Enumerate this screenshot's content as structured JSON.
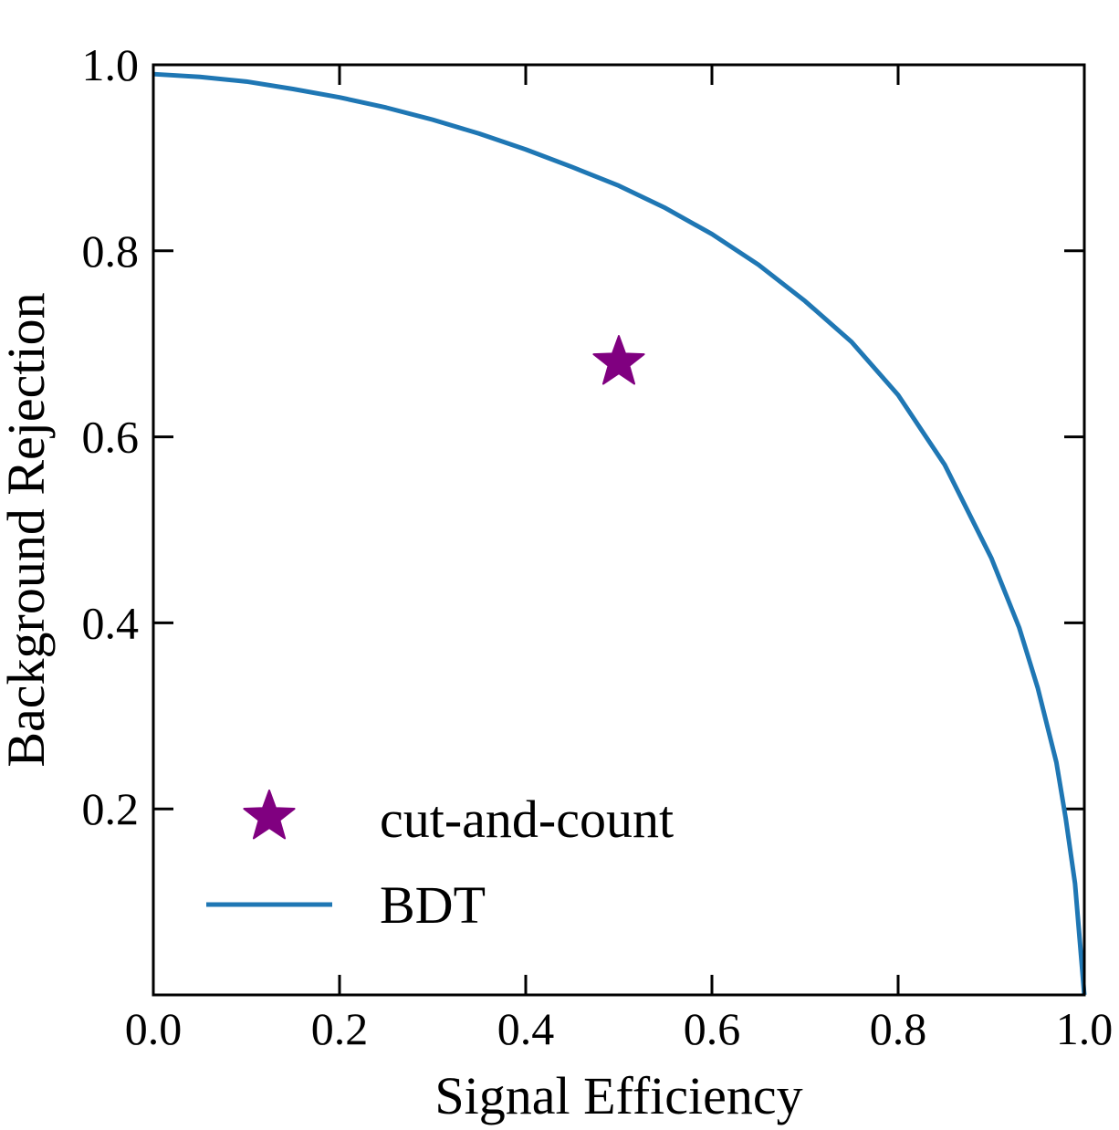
{
  "chart_data": {
    "type": "line",
    "title": "",
    "xlabel": "Signal Efficiency",
    "ylabel": "Background Rejection",
    "xlim": [
      0.0,
      1.0
    ],
    "ylim": [
      0.0,
      1.0
    ],
    "xticks": [
      "0.0",
      "0.2",
      "0.4",
      "0.6",
      "0.8",
      "1.0"
    ],
    "yticks": [
      "0.2",
      "0.4",
      "0.6",
      "0.8",
      "1.0"
    ],
    "grid": false,
    "legend_position": "lower-left",
    "series": [
      {
        "name": "BDT",
        "kind": "line",
        "color": "#1f77b4",
        "x": [
          0.0,
          0.05,
          0.1,
          0.15,
          0.2,
          0.25,
          0.3,
          0.35,
          0.4,
          0.45,
          0.5,
          0.55,
          0.6,
          0.65,
          0.7,
          0.75,
          0.8,
          0.85,
          0.9,
          0.93,
          0.95,
          0.97,
          0.98,
          0.99,
          0.995,
          1.0
        ],
        "y": [
          0.99,
          0.987,
          0.982,
          0.974,
          0.965,
          0.954,
          0.941,
          0.926,
          0.909,
          0.89,
          0.87,
          0.846,
          0.818,
          0.785,
          0.746,
          0.702,
          0.645,
          0.57,
          0.47,
          0.395,
          0.33,
          0.25,
          0.19,
          0.12,
          0.06,
          0.0
        ]
      },
      {
        "name": "cut-and-count",
        "kind": "marker",
        "marker": "star",
        "color": "#800080",
        "x": [
          0.5
        ],
        "y": [
          0.68
        ]
      }
    ]
  }
}
